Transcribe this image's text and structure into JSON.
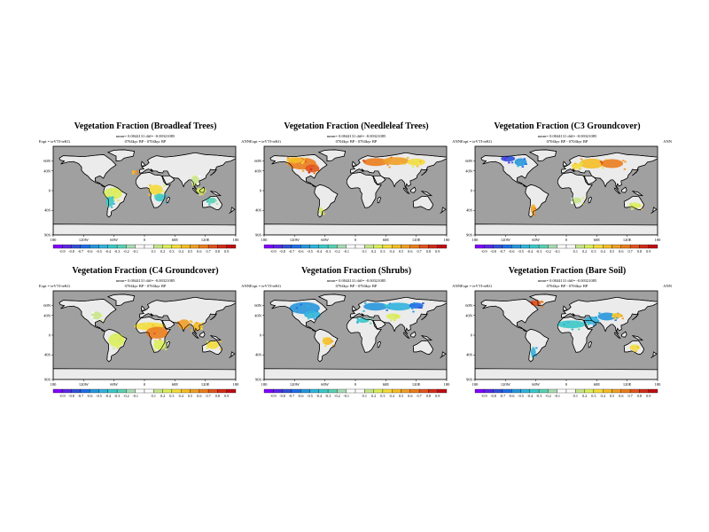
{
  "palette": [
    "#7f00ff",
    "#5a28e8",
    "#3250d8",
    "#1e6ee6",
    "#2896dc",
    "#32b4dc",
    "#3cc8c8",
    "#5ad2b4",
    "#aadcb4",
    "#ffffff",
    "#ffffff",
    "#c8e68c",
    "#dcf05a",
    "#f5dc3c",
    "#f5be28",
    "#f0a028",
    "#eb7d1e",
    "#e1551e",
    "#d22d19",
    "#be0f14"
  ],
  "colors": {
    "ocean": "#a0a0a0",
    "land": "#ebebeb",
    "coast": "#000000"
  },
  "panels": [
    {
      "title": "Vegetation Fraction (Broadleaf Trees)",
      "stats": "mean= 0.0044131 diff= -0.00321085",
      "expt": "Expt = teVTI-teKG",
      "years": "0704kyr BP - 0704kyr BP",
      "season": "ANN",
      "lat_labels": [
        "60N",
        "40N",
        "0",
        "40S",
        "90S"
      ],
      "lon_labels": [
        "180",
        "120W",
        "60W",
        "0",
        "60E",
        "120E",
        "180"
      ],
      "cbar_labels": [
        "-0.9",
        "-0.8",
        "-0.7",
        "-0.6",
        "-0.5",
        "-0.4",
        "-0.3",
        "-0.2",
        "-0.1",
        "0.1",
        "0.2",
        "0.3",
        "0.4",
        "0.5",
        "0.6",
        "0.7",
        "0.8",
        "0.9"
      ],
      "blobs": [
        {
          "lon": -62,
          "lat": -6,
          "rx": 18,
          "ry": 12,
          "c": 12
        },
        {
          "lon": -68,
          "lat": -22,
          "rx": 8,
          "ry": 10,
          "c": 6
        },
        {
          "lon": 22,
          "lat": 2,
          "rx": 14,
          "ry": 10,
          "c": 13
        },
        {
          "lon": 30,
          "lat": -14,
          "rx": 10,
          "ry": 8,
          "c": 6
        },
        {
          "lon": 100,
          "lat": 20,
          "rx": 8,
          "ry": 10,
          "c": 11
        },
        {
          "lon": 112,
          "lat": 0,
          "rx": 10,
          "ry": 6,
          "c": 12
        },
        {
          "lon": 132,
          "lat": -20,
          "rx": 10,
          "ry": 6,
          "c": 7
        },
        {
          "lon": -20,
          "lat": 38,
          "rx": 4,
          "ry": 3,
          "c": 15
        }
      ]
    },
    {
      "title": "Vegetation Fraction (Needleleaf Trees)",
      "stats": "mean= 0.0044131 diff= -0.00321085",
      "expt": "Expt = teVTI-teKG",
      "years": "0704kyr BP - 0704kyr BP",
      "season": "ANN",
      "lat_labels": [
        "60N",
        "40N",
        "0",
        "40S",
        "90S"
      ],
      "lon_labels": [
        "180",
        "120W",
        "60W",
        "0",
        "60E",
        "120E",
        "180"
      ],
      "cbar_labels": [
        "-0.9",
        "-0.8",
        "-0.7",
        "-0.6",
        "-0.5",
        "-0.4",
        "-0.3",
        "-0.2",
        "-0.1",
        "0.1",
        "0.2",
        "0.3",
        "0.4",
        "0.5",
        "0.6",
        "0.7",
        "0.8",
        "0.9"
      ],
      "blobs": [
        {
          "lon": -105,
          "lat": 55,
          "rx": 28,
          "ry": 12,
          "c": 16
        },
        {
          "lon": -85,
          "lat": 45,
          "rx": 14,
          "ry": 8,
          "c": 17
        },
        {
          "lon": -120,
          "lat": 62,
          "rx": 16,
          "ry": 6,
          "c": 14
        },
        {
          "lon": 40,
          "lat": 58,
          "rx": 24,
          "ry": 8,
          "c": 16
        },
        {
          "lon": 80,
          "lat": 60,
          "rx": 26,
          "ry": 8,
          "c": 15
        },
        {
          "lon": 120,
          "lat": 58,
          "rx": 18,
          "ry": 7,
          "c": 13
        },
        {
          "lon": -68,
          "lat": -40,
          "rx": 4,
          "ry": 6,
          "c": 12
        }
      ]
    },
    {
      "title": "Vegetation Fraction (C3 Groundcover)",
      "stats": "mean= 0.0044131 diff= -0.00321085",
      "expt": "Expt = teVTI-teKG",
      "years": "0704kyr BP - 0704kyr BP",
      "season": "ANN",
      "lat_labels": [
        "60N",
        "40N",
        "0",
        "40S",
        "90S"
      ],
      "lon_labels": [
        "180",
        "120W",
        "60W",
        "0",
        "60E",
        "120E",
        "180"
      ],
      "cbar_labels": [
        "-0.9",
        "-0.8",
        "-0.7",
        "-0.6",
        "-0.5",
        "-0.4",
        "-0.3",
        "-0.2",
        "-0.1",
        "0.1",
        "0.2",
        "0.3",
        "0.4",
        "0.5",
        "0.6",
        "0.7",
        "0.8",
        "0.9"
      ],
      "blobs": [
        {
          "lon": -115,
          "lat": 65,
          "rx": 14,
          "ry": 6,
          "c": 2
        },
        {
          "lon": -90,
          "lat": 58,
          "rx": 12,
          "ry": 8,
          "c": 4
        },
        {
          "lon": 50,
          "lat": 55,
          "rx": 24,
          "ry": 10,
          "c": 14
        },
        {
          "lon": 90,
          "lat": 55,
          "rx": 22,
          "ry": 9,
          "c": 16
        },
        {
          "lon": 20,
          "lat": 50,
          "rx": 10,
          "ry": 6,
          "c": 13
        },
        {
          "lon": -65,
          "lat": -38,
          "rx": 5,
          "ry": 10,
          "c": 15
        },
        {
          "lon": 135,
          "lat": -30,
          "rx": 12,
          "ry": 6,
          "c": 12
        },
        {
          "lon": 20,
          "lat": -20,
          "rx": 10,
          "ry": 6,
          "c": 11
        }
      ]
    },
    {
      "title": "Vegetation Fraction (C4 Groundcover)",
      "stats": "mean= 0.0044131 diff= -0.00321085",
      "expt": "Expt = teVTI-teKG",
      "years": "0704kyr BP - 0704kyr BP",
      "season": "ANN",
      "lat_labels": [
        "60N",
        "40N",
        "0",
        "40S",
        "90S"
      ],
      "lon_labels": [
        "180",
        "120W",
        "60W",
        "0",
        "60E",
        "120E",
        "180"
      ],
      "cbar_labels": [
        "-0.9",
        "-0.8",
        "-0.7",
        "-0.6",
        "-0.5",
        "-0.4",
        "-0.3",
        "-0.2",
        "-0.1",
        "0.1",
        "0.2",
        "0.3",
        "0.4",
        "0.5",
        "0.6",
        "0.7",
        "0.8",
        "0.9"
      ],
      "blobs": [
        {
          "lon": 10,
          "lat": 18,
          "rx": 30,
          "ry": 8,
          "c": 13
        },
        {
          "lon": 25,
          "lat": 5,
          "rx": 22,
          "ry": 12,
          "c": 16
        },
        {
          "lon": 30,
          "lat": -20,
          "rx": 12,
          "ry": 10,
          "c": 12
        },
        {
          "lon": 78,
          "lat": 22,
          "rx": 12,
          "ry": 10,
          "c": 15
        },
        {
          "lon": 105,
          "lat": 18,
          "rx": 10,
          "ry": 8,
          "c": 14
        },
        {
          "lon": -55,
          "lat": -10,
          "rx": 16,
          "ry": 14,
          "c": 12
        },
        {
          "lon": -95,
          "lat": 40,
          "rx": 10,
          "ry": 8,
          "c": 11
        },
        {
          "lon": 135,
          "lat": -20,
          "rx": 12,
          "ry": 8,
          "c": 13
        }
      ]
    },
    {
      "title": "Vegetation Fraction (Shrubs)",
      "stats": "mean= 0.0044131 diff= -0.00321085",
      "expt": "Expt = teVTI-teKG",
      "years": "0704kyr BP - 0704kyr BP",
      "season": "ANN",
      "lat_labels": [
        "60N",
        "40N",
        "0",
        "40S",
        "90S"
      ],
      "lon_labels": [
        "180",
        "120W",
        "60W",
        "0",
        "60E",
        "120E",
        "180"
      ],
      "cbar_labels": [
        "-0.9",
        "-0.8",
        "-0.7",
        "-0.6",
        "-0.5",
        "-0.4",
        "-0.3",
        "-0.2",
        "-0.1",
        "0.1",
        "0.2",
        "0.3",
        "0.4",
        "0.5",
        "0.6",
        "0.7",
        "0.8",
        "0.9"
      ],
      "blobs": [
        {
          "lon": -100,
          "lat": 55,
          "rx": 30,
          "ry": 12,
          "c": 4
        },
        {
          "lon": -85,
          "lat": 42,
          "rx": 16,
          "ry": 8,
          "c": 5
        },
        {
          "lon": 40,
          "lat": 58,
          "rx": 24,
          "ry": 8,
          "c": 4
        },
        {
          "lon": 85,
          "lat": 58,
          "rx": 26,
          "ry": 8,
          "c": 5
        },
        {
          "lon": 120,
          "lat": 60,
          "rx": 14,
          "ry": 6,
          "c": 3
        },
        {
          "lon": 75,
          "lat": 38,
          "rx": 14,
          "ry": 6,
          "c": 12
        },
        {
          "lon": -55,
          "lat": -12,
          "rx": 10,
          "ry": 8,
          "c": 14
        },
        {
          "lon": 15,
          "lat": 30,
          "rx": 12,
          "ry": 5,
          "c": 6
        }
      ]
    },
    {
      "title": "Vegetation Fraction (Bare Soil)",
      "stats": "mean= 0.0044131 diff= -0.00321085",
      "expt": "Expt = teVTI-teKG",
      "years": "0704kyr BP - 0704kyr BP",
      "season": "ANN",
      "lat_labels": [
        "60N",
        "40N",
        "0",
        "40S",
        "90S"
      ],
      "lon_labels": [
        "180",
        "120W",
        "60W",
        "0",
        "60E",
        "120E",
        "180"
      ],
      "cbar_labels": [
        "-0.9",
        "-0.8",
        "-0.7",
        "-0.6",
        "-0.5",
        "-0.4",
        "-0.3",
        "-0.2",
        "-0.1",
        "0.1",
        "0.2",
        "0.3",
        "0.4",
        "0.5",
        "0.6",
        "0.7",
        "0.8",
        "0.9"
      ],
      "blobs": [
        {
          "lon": 10,
          "lat": 22,
          "rx": 28,
          "ry": 8,
          "c": 6
        },
        {
          "lon": 50,
          "lat": 30,
          "rx": 14,
          "ry": 8,
          "c": 5
        },
        {
          "lon": 80,
          "lat": 38,
          "rx": 18,
          "ry": 8,
          "c": 4
        },
        {
          "lon": -60,
          "lat": 65,
          "rx": 10,
          "ry": 6,
          "c": 17
        },
        {
          "lon": -65,
          "lat": -35,
          "rx": 5,
          "ry": 10,
          "c": 5
        },
        {
          "lon": 135,
          "lat": -25,
          "rx": 10,
          "ry": 6,
          "c": 13
        },
        {
          "lon": 100,
          "lat": 40,
          "rx": 10,
          "ry": 5,
          "c": 14
        }
      ]
    }
  ]
}
